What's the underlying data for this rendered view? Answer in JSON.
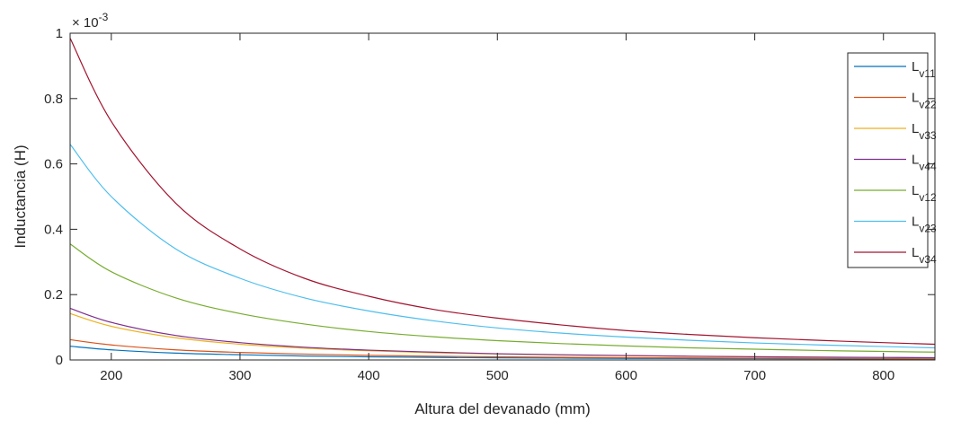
{
  "chart_data": {
    "type": "line",
    "title": "",
    "xlabel": "Altura del devanado (mm)",
    "ylabel": "Inductancia (H)",
    "y_exponent_base": "× 10",
    "y_exponent_power": "-3",
    "xlim": [
      168,
      840
    ],
    "ylim": [
      0,
      1
    ],
    "xticks": [
      200,
      300,
      400,
      500,
      600,
      700,
      800
    ],
    "yticks": [
      0,
      0.2,
      0.4,
      0.6,
      0.8,
      1
    ],
    "ytick_labels": [
      "0",
      "0.2",
      "0.4",
      "0.6",
      "0.8",
      "1"
    ],
    "grid": false,
    "legend_position": "top-right",
    "x": [
      168,
      200,
      250,
      300,
      350,
      400,
      450,
      500,
      550,
      600,
      650,
      700,
      750,
      800,
      840
    ],
    "series": [
      {
        "name_base": "L",
        "name_sub": "v11",
        "color": "#0072BD",
        "values": [
          0.042,
          0.031,
          0.021,
          0.016,
          0.012,
          0.0095,
          0.0078,
          0.0065,
          0.0056,
          0.0048,
          0.0042,
          0.0037,
          0.0033,
          0.003,
          0.0027
        ]
      },
      {
        "name_base": "L",
        "name_sub": "v22",
        "color": "#D95319",
        "values": [
          0.062,
          0.046,
          0.031,
          0.023,
          0.018,
          0.014,
          0.0115,
          0.0096,
          0.0082,
          0.007,
          0.0061,
          0.0054,
          0.0048,
          0.0043,
          0.004
        ]
      },
      {
        "name_base": "L",
        "name_sub": "v33",
        "color": "#EDB120",
        "values": [
          0.142,
          0.103,
          0.068,
          0.048,
          0.036,
          0.028,
          0.022,
          0.018,
          0.015,
          0.013,
          0.011,
          0.0095,
          0.0083,
          0.0073,
          0.0066
        ]
      },
      {
        "name_base": "L",
        "name_sub": "v44",
        "color": "#7E2F8E",
        "values": [
          0.158,
          0.115,
          0.075,
          0.053,
          0.039,
          0.03,
          0.024,
          0.019,
          0.016,
          0.0135,
          0.0115,
          0.01,
          0.0087,
          0.0077,
          0.0069
        ]
      },
      {
        "name_base": "L",
        "name_sub": "v12",
        "color": "#77AC30",
        "values": [
          0.355,
          0.27,
          0.19,
          0.142,
          0.11,
          0.087,
          0.071,
          0.059,
          0.05,
          0.043,
          0.037,
          0.033,
          0.029,
          0.026,
          0.024
        ]
      },
      {
        "name_base": "L",
        "name_sub": "v23",
        "color": "#4DBEEE",
        "values": [
          0.66,
          0.5,
          0.34,
          0.25,
          0.19,
          0.15,
          0.12,
          0.098,
          0.082,
          0.07,
          0.06,
          0.052,
          0.046,
          0.041,
          0.037
        ]
      },
      {
        "name_base": "L",
        "name_sub": "v34",
        "color": "#A2142F",
        "values": [
          0.985,
          0.73,
          0.48,
          0.34,
          0.25,
          0.195,
          0.155,
          0.128,
          0.107,
          0.09,
          0.078,
          0.068,
          0.06,
          0.053,
          0.048
        ]
      }
    ]
  }
}
